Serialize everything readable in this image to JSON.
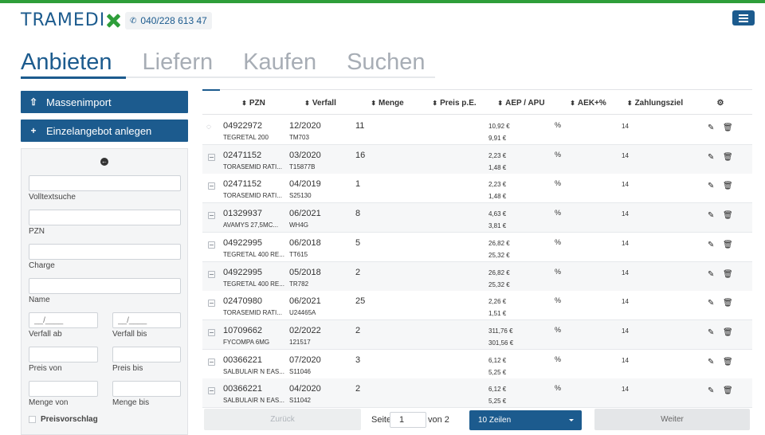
{
  "header": {
    "logo_text": "TRAMEDI",
    "phone": "040/228 613 47",
    "brand_color": "#1c5b8e",
    "accent_color": "#2e9e3a"
  },
  "tabs": [
    {
      "label": "Anbieten",
      "active": true
    },
    {
      "label": "Liefern",
      "active": false
    },
    {
      "label": "Kaufen",
      "active": false
    },
    {
      "label": "Suchen",
      "active": false
    }
  ],
  "sidebar": {
    "mass_import_label": "Massenimport",
    "single_offer_label": "Einzelangebot anlegen",
    "filters": {
      "fulltext_label": "Volltextsuche",
      "pzn_label": "PZN",
      "charge_label": "Charge",
      "name_label": "Name",
      "date_placeholder": "__/____",
      "verfall_ab_label": "Verfall ab",
      "verfall_bis_label": "Verfall bis",
      "preis_von_label": "Preis von",
      "preis_bis_label": "Preis bis",
      "menge_von_label": "Menge von",
      "menge_bis_label": "Menge bis",
      "preisvorschlag_label": "Preisvorschlag"
    }
  },
  "table": {
    "columns": {
      "pzn": "PZN",
      "verfall": "Verfall",
      "menge": "Menge",
      "preis": "Preis p.E.",
      "aep": "AEP / APU",
      "aek": "AEK+%",
      "zahlungsziel": "Zahlungsziel"
    },
    "rows": [
      {
        "pzn": "04922972",
        "name": "TEGRETAL 200",
        "verfall": "12/2020",
        "charge": "TM703",
        "menge": "11",
        "aep": "10,92 €",
        "apu": "9,91 €",
        "aek": "%",
        "zz": "14",
        "hidden": true
      },
      {
        "pzn": "02471152",
        "name": "TORASEMID RATI...",
        "verfall": "03/2020",
        "charge": "T15877B",
        "menge": "16",
        "aep": "2,23 €",
        "apu": "1,48 €",
        "aek": "%",
        "zz": "14",
        "hidden": false
      },
      {
        "pzn": "02471152",
        "name": "TORASEMID RATI...",
        "verfall": "04/2019",
        "charge": "S25130",
        "menge": "1",
        "aep": "2,23 €",
        "apu": "1,48 €",
        "aek": "%",
        "zz": "14",
        "hidden": false
      },
      {
        "pzn": "01329937",
        "name": "AVAMYS 27,5MC...",
        "verfall": "06/2021",
        "charge": "WH4G",
        "menge": "8",
        "aep": "4,63 €",
        "apu": "3,81 €",
        "aek": "%",
        "zz": "14",
        "hidden": false
      },
      {
        "pzn": "04922995",
        "name": "TEGRETAL 400 RE...",
        "verfall": "06/2018",
        "charge": "TT615",
        "menge": "5",
        "aep": "26,82 €",
        "apu": "25,32 €",
        "aek": "%",
        "zz": "14",
        "hidden": false
      },
      {
        "pzn": "04922995",
        "name": "TEGRETAL 400 RE...",
        "verfall": "05/2018",
        "charge": "TR782",
        "menge": "2",
        "aep": "26,82 €",
        "apu": "25,32 €",
        "aek": "%",
        "zz": "14",
        "hidden": false
      },
      {
        "pzn": "02470980",
        "name": "TORASEMID RATI...",
        "verfall": "06/2021",
        "charge": "U24465A",
        "menge": "25",
        "aep": "2,26 €",
        "apu": "1,51 €",
        "aek": "%",
        "zz": "14",
        "hidden": false
      },
      {
        "pzn": "10709662",
        "name": "FYCOMPA 6MG",
        "verfall": "02/2022",
        "charge": "121517",
        "menge": "2",
        "aep": "311,76 €",
        "apu": "301,56 €",
        "aek": "%",
        "zz": "14",
        "hidden": false
      },
      {
        "pzn": "00366221",
        "name": "SALBULAIR N EAS...",
        "verfall": "07/2020",
        "charge": "S11046",
        "menge": "3",
        "aep": "6,12 €",
        "apu": "5,25 €",
        "aek": "%",
        "zz": "14",
        "hidden": false
      },
      {
        "pzn": "00366221",
        "name": "SALBULAIR N EAS...",
        "verfall": "04/2020",
        "charge": "S11042",
        "menge": "2",
        "aep": "6,12 €",
        "apu": "5,25 €",
        "aek": "%",
        "zz": "14",
        "hidden": false
      }
    ]
  },
  "pager": {
    "prev_label": "Zurück",
    "page_label": "Seite",
    "page_value": "1",
    "of_label": "von 2",
    "rows_select": "10 Zeilen",
    "next_label": "Weiter"
  }
}
